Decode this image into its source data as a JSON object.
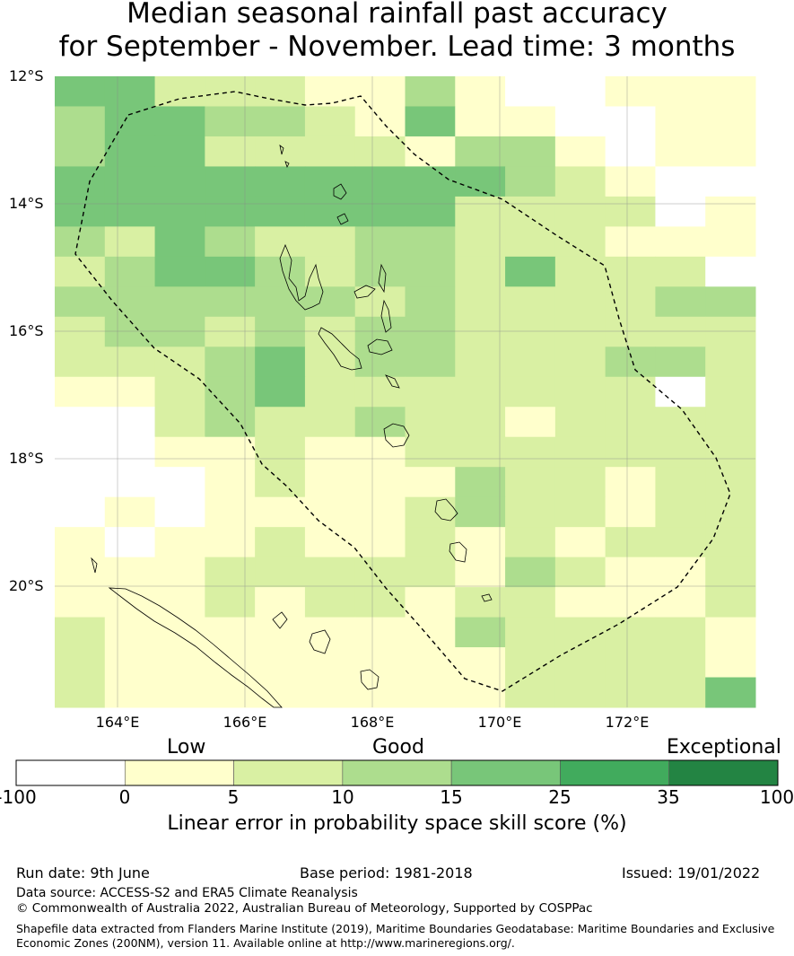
{
  "title": {
    "line1": "Median seasonal rainfall past accuracy",
    "line2": "for September - November. Lead time: 3 months"
  },
  "map": {
    "lat_labels": [
      "12°S",
      "14°S",
      "16°S",
      "18°S",
      "20°S"
    ],
    "lon_labels": [
      "164°E",
      "166°E",
      "168°E",
      "170°E",
      "172°E"
    ],
    "skill_grid_rows": [
      "44222113100111",
      "34433214110011",
      "34422221331011",
      "44444444432100",
      "44444444222201",
      "32432233222111",
      "23443233242220",
      "33333323222233",
      "23323233222222",
      "22234233222332",
      "11234222222202",
      "00232232212222",
      "00112112222222",
      "00012111322122",
      "01011112322122",
      "10112112121222",
      "11122222132112",
      "11121221221112",
      "21111111322221",
      "21111111122221",
      "21111111122224"
    ]
  },
  "colorbar": {
    "category_low": "Low",
    "category_good": "Good",
    "category_exceptional": "Exceptional",
    "ticks": [
      "-100",
      "0",
      "5",
      "10",
      "15",
      "25",
      "35",
      "100"
    ],
    "colors": [
      "#ffffff",
      "#ffffcc",
      "#d9f0a3",
      "#addd8e",
      "#78c679",
      "#41ab5d",
      "#238443"
    ],
    "title": "Linear error in probability space skill score (%)"
  },
  "footer": {
    "run_date": "Run date: 9th June",
    "base_period": "Base period: 1981-2018",
    "issued": "Issued: 19/01/2022",
    "data_source": "Data source: ACCESS-S2 and ERA5 Climate Reanalysis",
    "copyright": "© Commonwealth of Australia 2022, Australian Bureau of Meteorology, Supported by COSPPac",
    "shapefile_line1": "Shapefile data extracted from Flanders Marine Institute (2019), Maritime Boundaries Geodatabase: Maritime Boundaries and Exclusive",
    "shapefile_line2": "Economic Zones (200NM), version 11. Available online at http://www.marineregions.org/."
  }
}
